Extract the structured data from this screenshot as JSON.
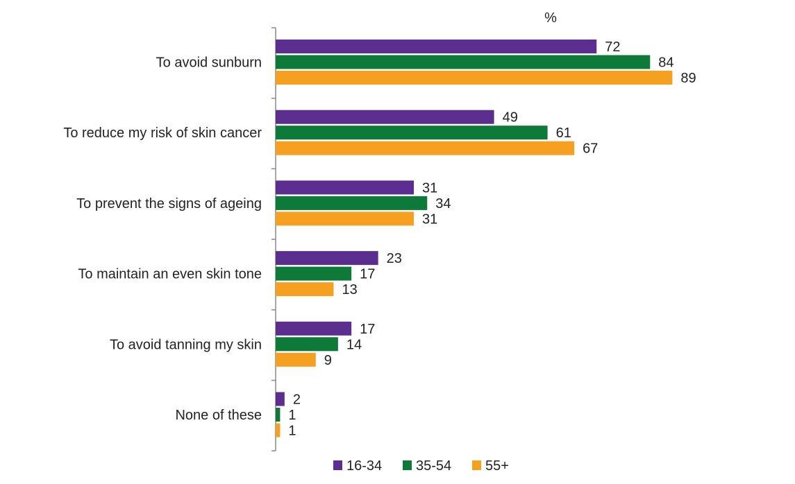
{
  "chart_data": {
    "type": "bar",
    "orientation": "horizontal",
    "unit_label": "%",
    "categories": [
      "To avoid sunburn",
      "To reduce my risk of skin cancer",
      "To prevent the signs of ageing",
      "To maintain an even skin tone",
      "To avoid tanning my skin",
      "None of these"
    ],
    "series": [
      {
        "name": "16-34",
        "color": "#5b2d8e",
        "values": [
          72,
          49,
          31,
          23,
          17,
          2
        ]
      },
      {
        "name": "35-54",
        "color": "#0e7a3a",
        "values": [
          84,
          61,
          34,
          17,
          14,
          1
        ]
      },
      {
        "name": "55+",
        "color": "#f5a020",
        "values": [
          89,
          67,
          31,
          13,
          9,
          1
        ]
      }
    ],
    "xlim": [
      0,
      100
    ],
    "grid": false,
    "legend_position": "bottom"
  }
}
